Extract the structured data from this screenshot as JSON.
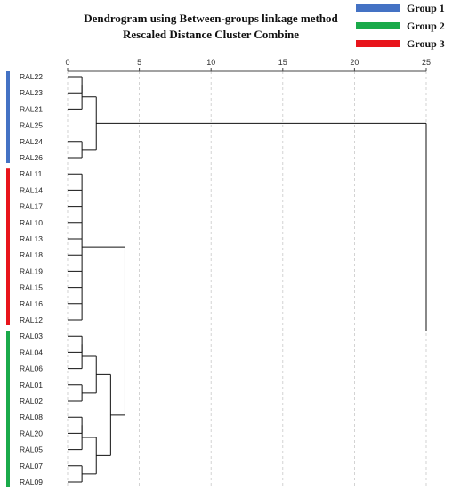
{
  "chart_data": {
    "type": "dendrogram",
    "title": "Dendrogram using Between-groups linkage method",
    "subtitle": "Rescaled Distance Cluster Combine",
    "x_ticks": [
      0,
      5,
      10,
      15,
      20,
      25
    ],
    "xlim": [
      0,
      25
    ],
    "grid": true,
    "legend_position": "top-right",
    "legend": [
      {
        "name": "Group 1",
        "color": "#4472c4"
      },
      {
        "name": "Group 2",
        "color": "#1aaa4a"
      },
      {
        "name": "Group 3",
        "color": "#e8141b"
      }
    ],
    "leaves": [
      "RAL22",
      "RAL23",
      "RAL21",
      "RAL25",
      "RAL24",
      "RAL26",
      "RAL11",
      "RAL14",
      "RAL17",
      "RAL10",
      "RAL13",
      "RAL18",
      "RAL19",
      "RAL15",
      "RAL16",
      "RAL12",
      "RAL03",
      "RAL04",
      "RAL06",
      "RAL01",
      "RAL02",
      "RAL08",
      "RAL20",
      "RAL05",
      "RAL07",
      "RAL09"
    ],
    "groups": [
      {
        "name": "Group 1",
        "color": "#4472c4",
        "from": 0,
        "to": 5
      },
      {
        "name": "Group 3",
        "color": "#e8141b",
        "from": 6,
        "to": 15
      },
      {
        "name": "Group 2",
        "color": "#1aaa4a",
        "from": 16,
        "to": 25
      }
    ],
    "merges": [
      {
        "id": "A",
        "children": [
          "RAL22",
          "RAL23"
        ],
        "height": 1
      },
      {
        "id": "B",
        "children": [
          "A",
          "RAL21"
        ],
        "height": 1
      },
      {
        "id": "C",
        "children": [
          "RAL24",
          "RAL26"
        ],
        "height": 1
      },
      {
        "id": "D",
        "children": [
          "B",
          "C"
        ],
        "height": 2
      },
      {
        "id": "E",
        "children": [
          "RAL11",
          "RAL14",
          "RAL17",
          "RAL10",
          "RAL13",
          "RAL18",
          "RAL19",
          "RAL15",
          "RAL16",
          "RAL12"
        ],
        "height": 1
      },
      {
        "id": "F",
        "children": [
          "RAL03",
          "RAL04"
        ],
        "height": 1
      },
      {
        "id": "G",
        "children": [
          "F",
          "RAL06"
        ],
        "height": 1
      },
      {
        "id": "H",
        "children": [
          "RAL01",
          "RAL02"
        ],
        "height": 1
      },
      {
        "id": "I",
        "children": [
          "G",
          "H"
        ],
        "height": 2
      },
      {
        "id": "J",
        "children": [
          "RAL08",
          "RAL20"
        ],
        "height": 1
      },
      {
        "id": "K",
        "children": [
          "J",
          "RAL05"
        ],
        "height": 1
      },
      {
        "id": "L",
        "children": [
          "RAL07",
          "RAL09"
        ],
        "height": 1
      },
      {
        "id": "M",
        "children": [
          "K",
          "L"
        ],
        "height": 2
      },
      {
        "id": "N",
        "children": [
          "I",
          "M"
        ],
        "height": 3
      },
      {
        "id": "O",
        "children": [
          "E",
          "N"
        ],
        "height": 4
      },
      {
        "id": "P",
        "children": [
          "D",
          "O"
        ],
        "height": 25
      }
    ]
  }
}
